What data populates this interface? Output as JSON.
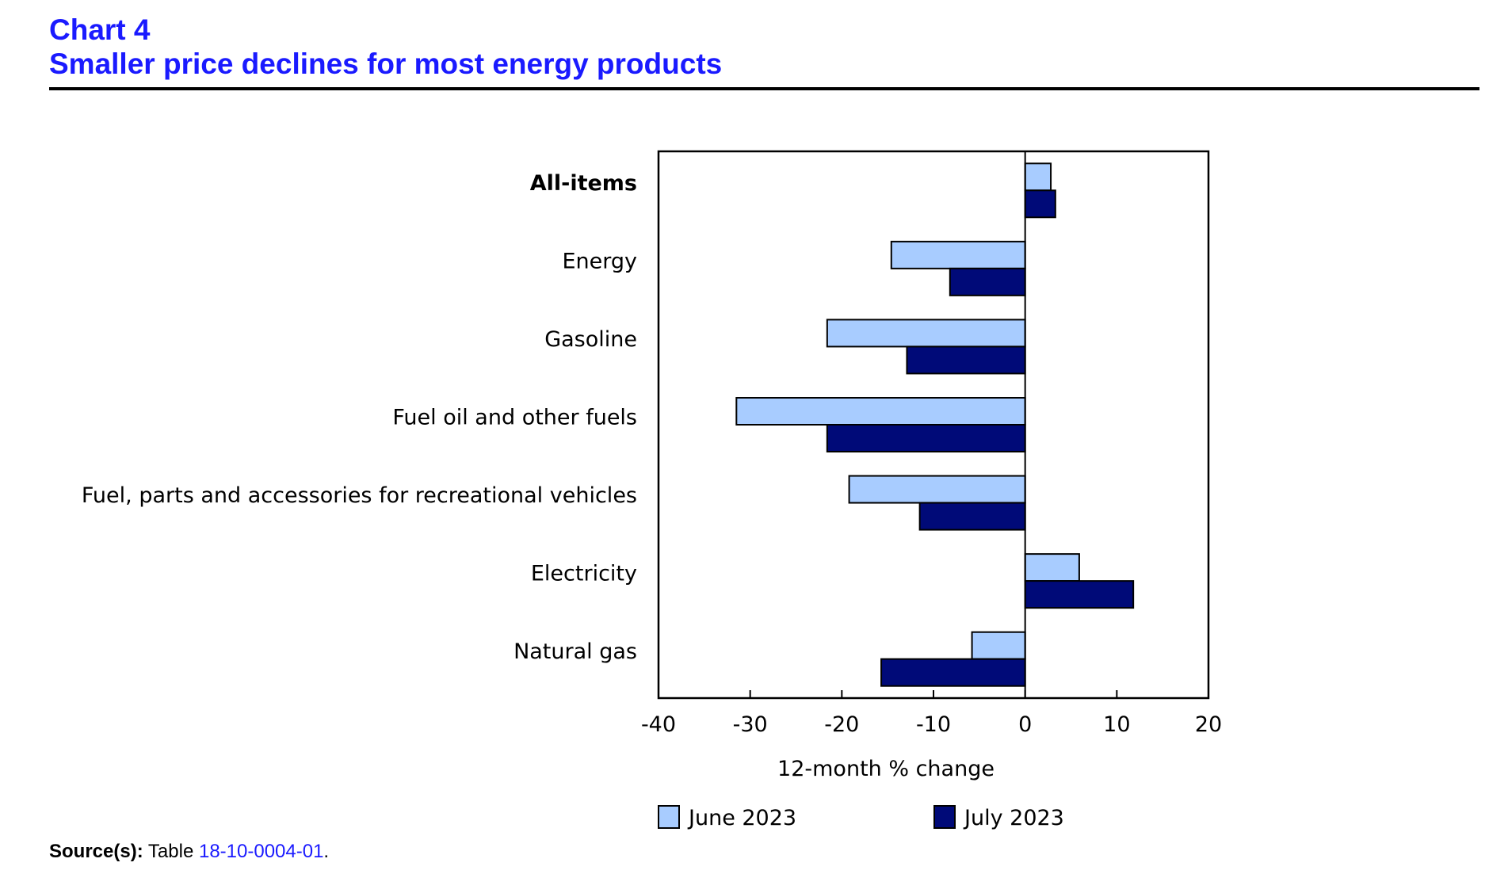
{
  "header": {
    "chart_number": "Chart 4",
    "title": "Smaller price declines for most energy products"
  },
  "source": {
    "label": "Source(s):",
    "text": "Table",
    "link": "18-10-0004-01",
    "suffix": "."
  },
  "colors": {
    "june": "#a8ccff",
    "july": "#000a78",
    "title": "#1a1aff"
  },
  "chart_data": {
    "type": "bar",
    "orientation": "horizontal",
    "title": "Smaller price declines for most energy products",
    "xlabel": "12-month % change",
    "ylabel": "",
    "xlim": [
      -40,
      20
    ],
    "xticks": [
      -40,
      -30,
      -20,
      -10,
      0,
      10,
      20
    ],
    "legend_position": "bottom",
    "grid": false,
    "categories": [
      "All-items",
      "Energy",
      "Gasoline",
      "Fuel oil and other fuels",
      "Fuel, parts and accessories for recreational vehicles",
      "Electricity",
      "Natural gas"
    ],
    "bold_categories": [
      "All-items"
    ],
    "series": [
      {
        "name": "June 2023",
        "color": "#a8ccff",
        "values": [
          2.8,
          -14.6,
          -21.6,
          -31.5,
          -19.2,
          5.9,
          -5.8
        ]
      },
      {
        "name": "July 2023",
        "color": "#000a78",
        "values": [
          3.3,
          -8.2,
          -12.9,
          -21.6,
          -11.5,
          11.8,
          -15.7
        ]
      }
    ]
  }
}
